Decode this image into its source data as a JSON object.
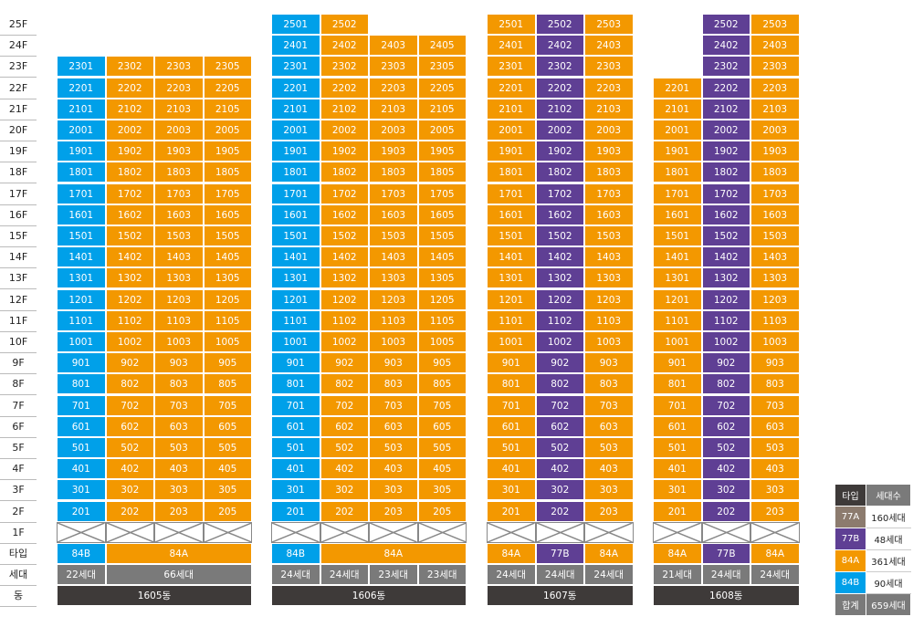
{
  "colors": {
    "A84": "#f39800",
    "B84": "#00a0e9",
    "B77": "#5f3f94",
    "A77": "#8c7b6e",
    "pilotis_border": "#888",
    "summary": "#7a7a7a",
    "dong": "#3e3a39"
  },
  "floor_labels": [
    "25F",
    "24F",
    "23F",
    "22F",
    "21F",
    "20F",
    "19F",
    "18F",
    "17F",
    "16F",
    "15F",
    "14F",
    "13F",
    "12F",
    "11F",
    "10F",
    "9F",
    "8F",
    "7F",
    "6F",
    "5F",
    "4F",
    "3F",
    "2F",
    "1F"
  ],
  "row_labels": {
    "type": "타입",
    "households": "세대",
    "dong": "동"
  },
  "buildings": [
    {
      "name": "1605동",
      "lines": [
        {
          "suffix": "01",
          "type": "B84",
          "top": 23,
          "households": "22세대"
        },
        {
          "suffix": "02",
          "type": "A84",
          "top": 23,
          "households": "66세대"
        },
        {
          "suffix": "03",
          "type": "A84",
          "top": 23
        },
        {
          "suffix": "05",
          "type": "A84",
          "top": 23
        }
      ],
      "type_groups": [
        {
          "label": "84B",
          "span": 1,
          "type": "B84"
        },
        {
          "label": "84A",
          "span": 3,
          "type": "A84"
        }
      ],
      "household_groups": [
        {
          "label": "22세대",
          "span": 1
        },
        {
          "label": "66세대",
          "span": 3
        }
      ]
    },
    {
      "name": "1606동",
      "lines": [
        {
          "suffix": "01",
          "type": "B84",
          "top": 25
        },
        {
          "suffix": "02",
          "type": "A84",
          "top": 25
        },
        {
          "suffix": "03",
          "type": "A84",
          "top": 24
        },
        {
          "suffix": "05",
          "type": "A84",
          "top": 24
        }
      ],
      "type_groups": [
        {
          "label": "84B",
          "span": 1,
          "type": "B84"
        },
        {
          "label": "84A",
          "span": 3,
          "type": "A84"
        }
      ],
      "household_groups": [
        {
          "label": "24세대",
          "span": 1
        },
        {
          "label": "24세대",
          "span": 1
        },
        {
          "label": "23세대",
          "span": 1
        },
        {
          "label": "23세대",
          "span": 1
        }
      ]
    },
    {
      "name": "1607동",
      "lines": [
        {
          "suffix": "01",
          "type": "A84",
          "top": 25
        },
        {
          "suffix": "02",
          "type": "B77",
          "top": 25
        },
        {
          "suffix": "03",
          "type": "A84",
          "top": 25
        }
      ],
      "type_groups": [
        {
          "label": "84A",
          "span": 1,
          "type": "A84"
        },
        {
          "label": "77B",
          "span": 1,
          "type": "B77"
        },
        {
          "label": "84A",
          "span": 1,
          "type": "A84"
        }
      ],
      "household_groups": [
        {
          "label": "24세대",
          "span": 1
        },
        {
          "label": "24세대",
          "span": 1
        },
        {
          "label": "24세대",
          "span": 1
        }
      ]
    },
    {
      "name": "1608동",
      "lines": [
        {
          "suffix": "01",
          "type": "A84",
          "top": 22
        },
        {
          "suffix": "02",
          "type": "B77",
          "top": 25
        },
        {
          "suffix": "03",
          "type": "A84",
          "top": 25
        }
      ],
      "type_groups": [
        {
          "label": "84A",
          "span": 1,
          "type": "A84"
        },
        {
          "label": "77B",
          "span": 1,
          "type": "B77"
        },
        {
          "label": "84A",
          "span": 1,
          "type": "A84"
        }
      ],
      "household_groups": [
        {
          "label": "21세대",
          "span": 1
        },
        {
          "label": "24세대",
          "span": 1
        },
        {
          "label": "24세대",
          "span": 1
        }
      ]
    }
  ],
  "legend": {
    "header": {
      "type": "타입",
      "count": "세대수"
    },
    "rows": [
      {
        "type": "77A",
        "count": "160세대",
        "color": "A77"
      },
      {
        "type": "77B",
        "count": "48세대",
        "color": "B77"
      },
      {
        "type": "84A",
        "count": "361세대",
        "color": "A84"
      },
      {
        "type": "84B",
        "count": "90세대",
        "color": "B84"
      }
    ],
    "total": {
      "label": "합계",
      "count": "659세대"
    }
  }
}
